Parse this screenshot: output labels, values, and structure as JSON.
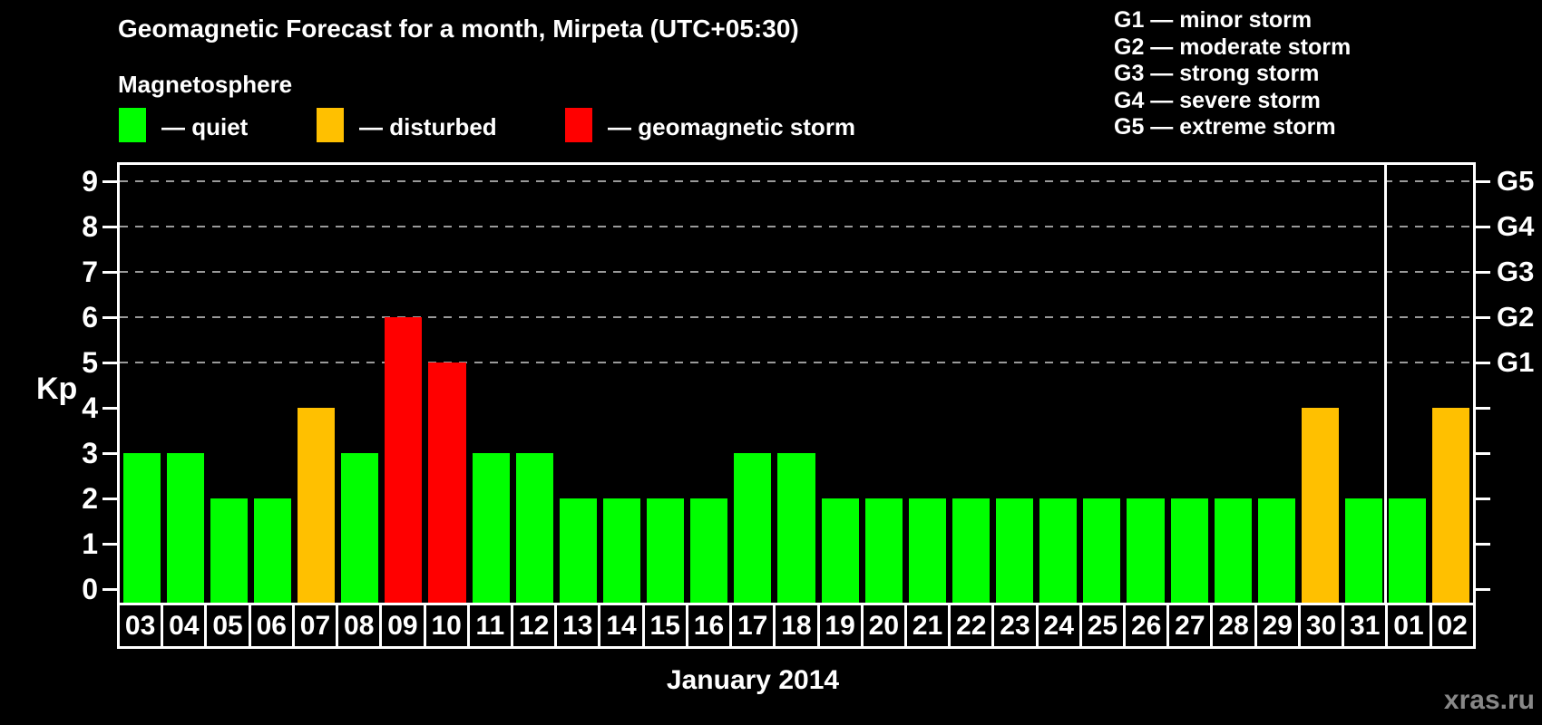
{
  "title": "Geomagnetic Forecast for a month, Mirpeta (UTC+05:30)",
  "legend": {
    "heading": "Magnetosphere",
    "items": [
      {
        "key": "quiet",
        "label": "— quiet"
      },
      {
        "key": "disturbed",
        "label": "— disturbed"
      },
      {
        "key": "storm",
        "label": "— geomagnetic storm"
      }
    ]
  },
  "g_scale": [
    "G1 — minor storm",
    "G2 — moderate storm",
    "G3 — strong storm",
    "G4 — severe storm",
    "G5 — extreme storm"
  ],
  "watermark": "xras.ru",
  "chart_data": {
    "type": "bar",
    "title": "Geomagnetic Forecast for a month, Mirpeta (UTC+05:30)",
    "xlabel": "January 2014",
    "ylabel": "Kp",
    "ylim": [
      0,
      9
    ],
    "grid": "dashed horizontal lines at Kp 5-9 only",
    "legend_position": "top-left",
    "categories": [
      "03",
      "04",
      "05",
      "06",
      "07",
      "08",
      "09",
      "10",
      "11",
      "12",
      "13",
      "14",
      "15",
      "16",
      "17",
      "18",
      "19",
      "20",
      "21",
      "22",
      "23",
      "24",
      "25",
      "26",
      "27",
      "28",
      "29",
      "30",
      "31",
      "01",
      "02"
    ],
    "values": [
      3,
      3,
      2,
      2,
      4,
      3,
      6,
      5,
      3,
      3,
      2,
      2,
      2,
      2,
      3,
      3,
      2,
      2,
      2,
      2,
      2,
      2,
      2,
      2,
      2,
      2,
      2,
      4,
      2,
      2,
      4
    ],
    "statuses": [
      "quiet",
      "quiet",
      "quiet",
      "quiet",
      "disturbed",
      "quiet",
      "storm",
      "storm",
      "quiet",
      "quiet",
      "quiet",
      "quiet",
      "quiet",
      "quiet",
      "quiet",
      "quiet",
      "quiet",
      "quiet",
      "quiet",
      "quiet",
      "quiet",
      "quiet",
      "quiet",
      "quiet",
      "quiet",
      "quiet",
      "quiet",
      "disturbed",
      "quiet",
      "quiet",
      "disturbed"
    ],
    "color_map": {
      "quiet": "#00ff00",
      "disturbed": "#ffc000",
      "storm": "#ff0000"
    },
    "background_color": "#000000",
    "axis_color": "#ffffff",
    "gridline_color": "#9a9a9a",
    "watermark_color": "#888888",
    "left_axis_ticks": [
      0,
      1,
      2,
      3,
      4,
      5,
      6,
      7,
      8,
      9
    ],
    "right_axis_labels": [
      {
        "label": "G5",
        "kp": 9
      },
      {
        "label": "G4",
        "kp": 8
      },
      {
        "label": "G3",
        "kp": 7
      },
      {
        "label": "G2",
        "kp": 6
      },
      {
        "label": "G1",
        "kp": 5
      }
    ],
    "gridline_kp": [
      5,
      6,
      7,
      8,
      9
    ],
    "month_separator_after_index": 28
  }
}
